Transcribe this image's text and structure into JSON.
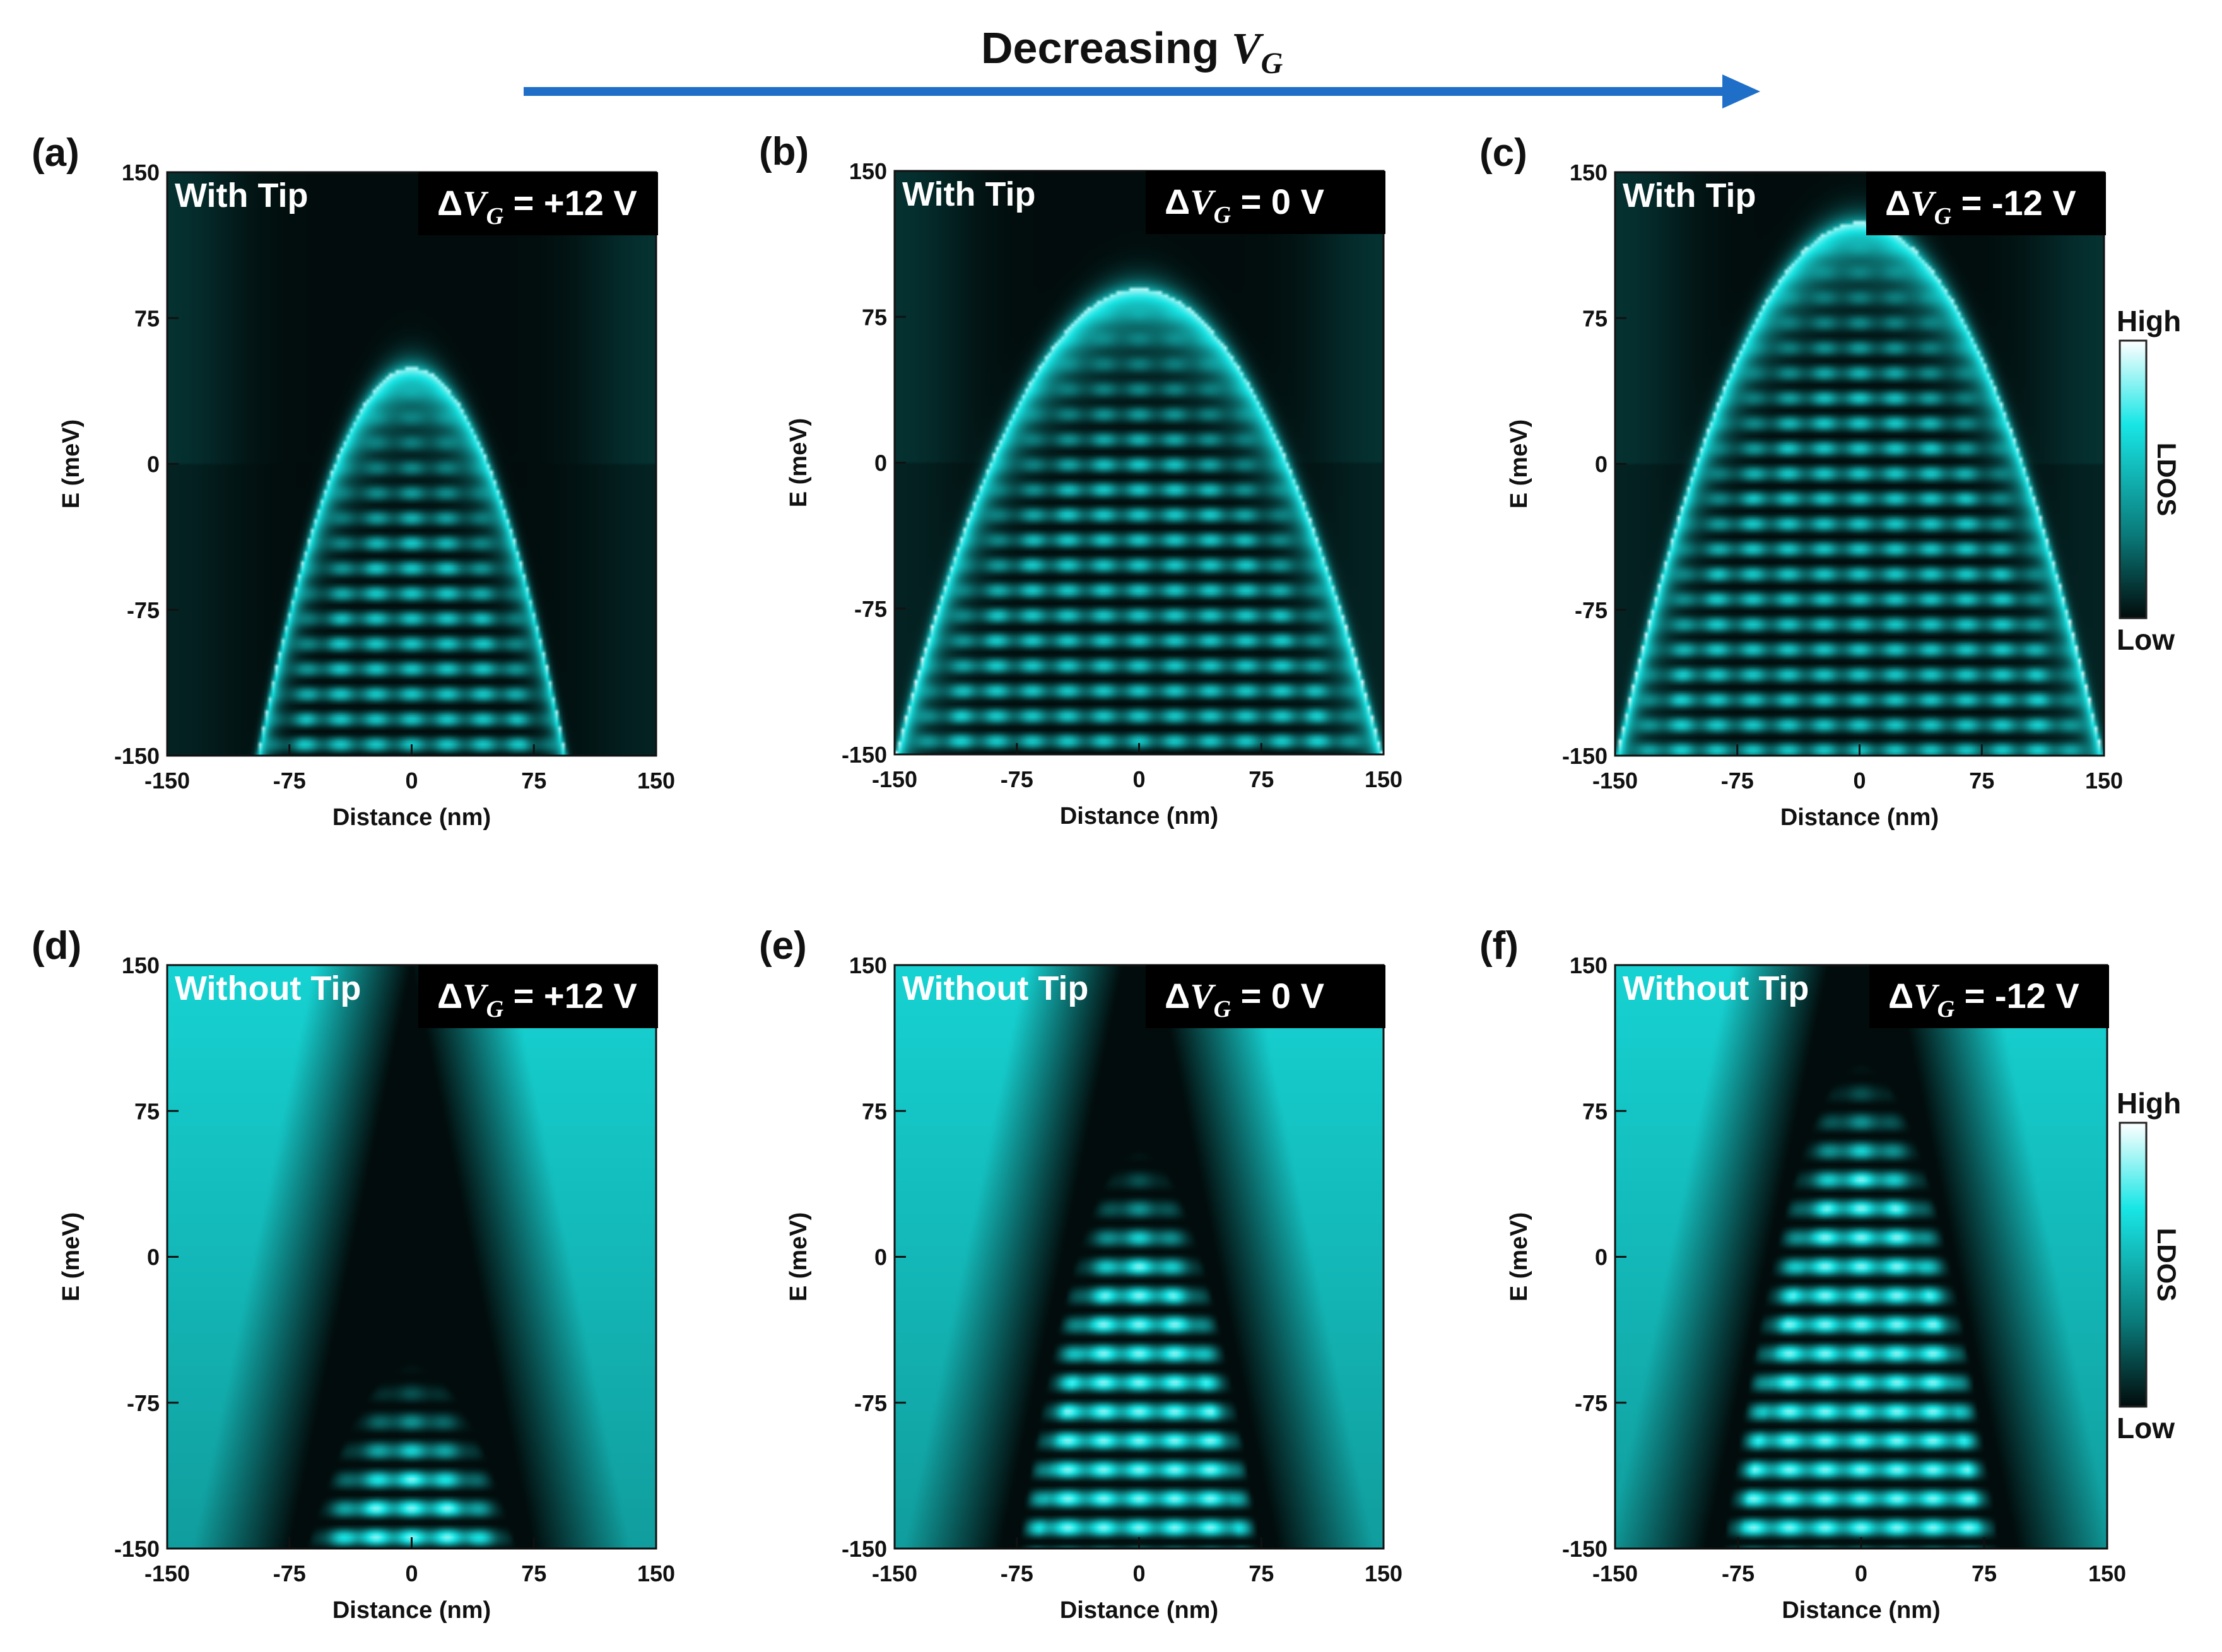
{
  "heading": {
    "text": "Decreasing ",
    "var": "V",
    "sub": "G"
  },
  "colors": {
    "arrow": "#1f6fc9",
    "cyan": "#19e6e6",
    "dark": "#020c0c",
    "text": "#111111"
  },
  "colorbar": {
    "high": "High",
    "low": "Low",
    "label": "LDOS"
  },
  "delta_symbol": "Δ",
  "chart_data": [
    {
      "id": "a",
      "label": "(a)",
      "tip": "With Tip",
      "dv": {
        "sign_value": " = +12 V",
        "value": 12
      },
      "type": "heatmap",
      "xlabel": "Distance (nm)",
      "ylabel": "E (meV)",
      "xlim": [
        -150,
        150
      ],
      "ylim": [
        -150,
        150
      ],
      "xticks": [
        "-150",
        "-75",
        "0",
        "75",
        "150"
      ],
      "yticks": [
        "150",
        "75",
        "0",
        "-75",
        "-150"
      ],
      "band_top_meV": 50,
      "band_edge_nm": 95,
      "mode": "with_tip"
    },
    {
      "id": "b",
      "label": "(b)",
      "tip": "With Tip",
      "dv": {
        "sign_value": " = 0 V",
        "value": 0
      },
      "type": "heatmap",
      "xlabel": "Distance (nm)",
      "ylabel": "E (meV)",
      "xlim": [
        -150,
        150
      ],
      "ylim": [
        -150,
        150
      ],
      "xticks": [
        "-150",
        "-75",
        "0",
        "75",
        "150"
      ],
      "yticks": [
        "150",
        "75",
        "0",
        "-75",
        "-150"
      ],
      "band_top_meV": 90,
      "band_edge_nm": 150,
      "mode": "with_tip"
    },
    {
      "id": "c",
      "label": "(c)",
      "tip": "With Tip",
      "dv": {
        "sign_value": " = -12 V",
        "value": -12
      },
      "type": "heatmap",
      "xlabel": "Distance (nm)",
      "ylabel": "E (meV)",
      "xlim": [
        -150,
        150
      ],
      "ylim": [
        -150,
        150
      ],
      "xticks": [
        "-150",
        "-75",
        "0",
        "75",
        "150"
      ],
      "yticks": [
        "150",
        "75",
        "0",
        "-75",
        "-150"
      ],
      "band_top_meV": 125,
      "band_edge_nm": 150,
      "mode": "with_tip"
    },
    {
      "id": "d",
      "label": "(d)",
      "tip": "Without Tip",
      "dv": {
        "sign_value": " = +12 V",
        "value": 12
      },
      "type": "heatmap",
      "xlabel": "Distance (nm)",
      "ylabel": "E (meV)",
      "xlim": [
        -150,
        150
      ],
      "ylim": [
        -150,
        150
      ],
      "xticks": [
        "-150",
        "-75",
        "0",
        "75",
        "150"
      ],
      "yticks": [
        "150",
        "75",
        "0",
        "-75",
        "-150"
      ],
      "band_top_meV": -55,
      "band_edge_nm": 65,
      "mode": "without_tip"
    },
    {
      "id": "e",
      "label": "(e)",
      "tip": "Without Tip",
      "dv": {
        "sign_value": " = 0 V",
        "value": 0
      },
      "type": "heatmap",
      "xlabel": "Distance (nm)",
      "ylabel": "E (meV)",
      "xlim": [
        -150,
        150
      ],
      "ylim": [
        -150,
        150
      ],
      "xticks": [
        "-150",
        "-75",
        "0",
        "75",
        "150"
      ],
      "yticks": [
        "150",
        "75",
        "0",
        "-75",
        "-150"
      ],
      "band_top_meV": 55,
      "band_edge_nm": 75,
      "mode": "without_tip"
    },
    {
      "id": "f",
      "label": "(f)",
      "tip": "Without Tip",
      "dv": {
        "sign_value": " = -12 V",
        "value": -12
      },
      "type": "heatmap",
      "xlabel": "Distance (nm)",
      "ylabel": "E (meV)",
      "xlim": [
        -150,
        150
      ],
      "ylim": [
        -150,
        150
      ],
      "xticks": [
        "-150",
        "-75",
        "0",
        "75",
        "150"
      ],
      "yticks": [
        "150",
        "75",
        "0",
        "-75",
        "-150"
      ],
      "band_top_meV": 100,
      "band_edge_nm": 85,
      "mode": "without_tip"
    }
  ]
}
